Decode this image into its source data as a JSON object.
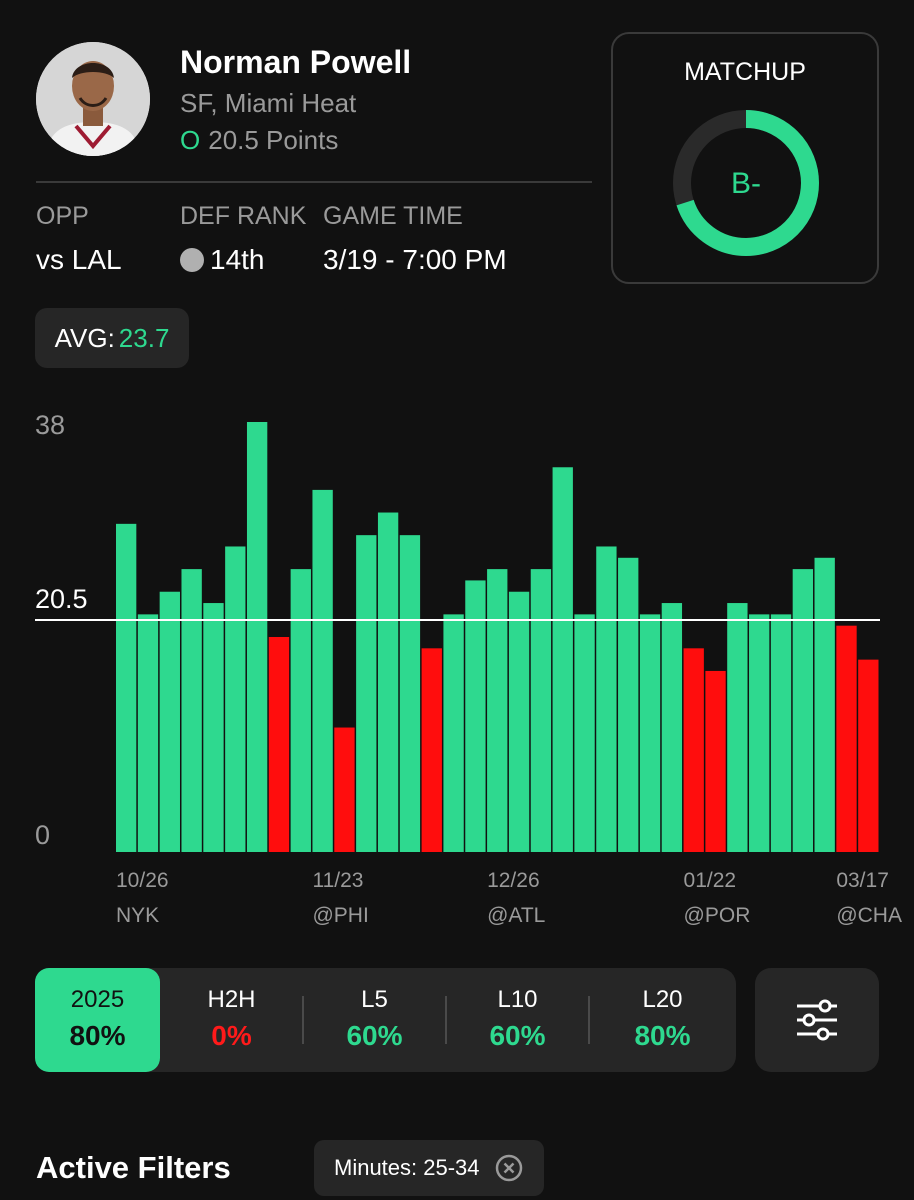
{
  "player": {
    "name": "Norman Powell",
    "position_team": "SF, Miami Heat",
    "line_side": "O",
    "line_text": "20.5 Points"
  },
  "stats": {
    "opp_label": "OPP",
    "opp_value": "vs LAL",
    "def_rank_label": "DEF RANK",
    "def_rank_value": "14th",
    "game_time_label": "GAME TIME",
    "game_time_value": "3/19 - 7:00 PM"
  },
  "matchup": {
    "title": "MATCHUP",
    "grade": "B-",
    "fill_fraction": 0.7,
    "color": "#2ed98f",
    "track_color": "#2a2a2a"
  },
  "avg": {
    "label": "AVG:",
    "value": "23.7"
  },
  "chart_data": {
    "type": "bar",
    "y_tick_labels": [
      "38",
      "20.5",
      "0"
    ],
    "ylim": [
      0,
      38
    ],
    "line_value": 20.5,
    "values": [
      29,
      21,
      23,
      25,
      22,
      27,
      38,
      19,
      25,
      32,
      11,
      28,
      30,
      28,
      18,
      21,
      24,
      25,
      23,
      25,
      34,
      21,
      27,
      26,
      21,
      22,
      18,
      16,
      22,
      21,
      21,
      25,
      26,
      20,
      17
    ],
    "x_tick_labels": [
      {
        "index": 0,
        "date": "10/26",
        "opp": "NYK"
      },
      {
        "index": 9,
        "date": "11/23",
        "opp": "@PHI"
      },
      {
        "index": 17,
        "date": "12/26",
        "opp": "@ATL"
      },
      {
        "index": 26,
        "date": "01/22",
        "opp": "@POR"
      },
      {
        "index": 33,
        "date": "03/17",
        "opp": "@CHA"
      }
    ],
    "colors": {
      "over": "#2ed98f",
      "under": "#ff0d0d",
      "line": "#ffffff"
    }
  },
  "filters": {
    "segments": [
      {
        "label": "2025",
        "pct": "80%",
        "active": true,
        "color": "#111111"
      },
      {
        "label": "H2H",
        "pct": "0%",
        "active": false,
        "color": "#ff1a1a"
      },
      {
        "label": "L5",
        "pct": "60%",
        "active": false,
        "color": "#2ed98f"
      },
      {
        "label": "L10",
        "pct": "60%",
        "active": false,
        "color": "#2ed98f"
      },
      {
        "label": "L20",
        "pct": "80%",
        "active": false,
        "color": "#2ed98f"
      }
    ],
    "settings_icon": "sliders-icon",
    "active_filters_title": "Active Filters",
    "chip_label": "Minutes: 25-34",
    "chip_icon": "close-circle-icon"
  }
}
